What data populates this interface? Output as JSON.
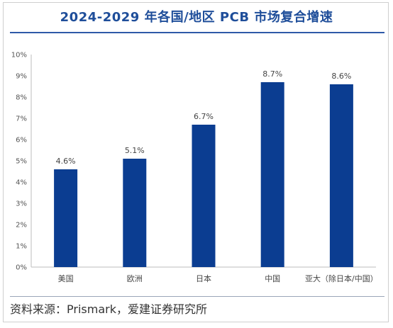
{
  "title": "2024-2029 年各国/地区 PCB 市场复合增速",
  "source": "资料来源：Prismark，爱建证券研究所",
  "chart_data": {
    "type": "bar",
    "title": "2024-2029 年各国/地区 PCB 市场复合增速",
    "categories": [
      "美国",
      "欧洲",
      "日本",
      "中国",
      "亚大（除日本/中国）"
    ],
    "values": [
      4.6,
      5.1,
      6.7,
      8.7,
      8.6
    ],
    "data_labels": [
      "4.6%",
      "5.1%",
      "6.7%",
      "8.7%",
      "8.6%"
    ],
    "y_ticks": [
      "0%",
      "1%",
      "2%",
      "3%",
      "4%",
      "5%",
      "6%",
      "7%",
      "8%",
      "9%",
      "10%"
    ],
    "xlabel": "",
    "ylabel": "",
    "ylim": [
      0,
      10
    ],
    "grid": false,
    "legend": "none",
    "bar_color": "#0b3d91"
  }
}
